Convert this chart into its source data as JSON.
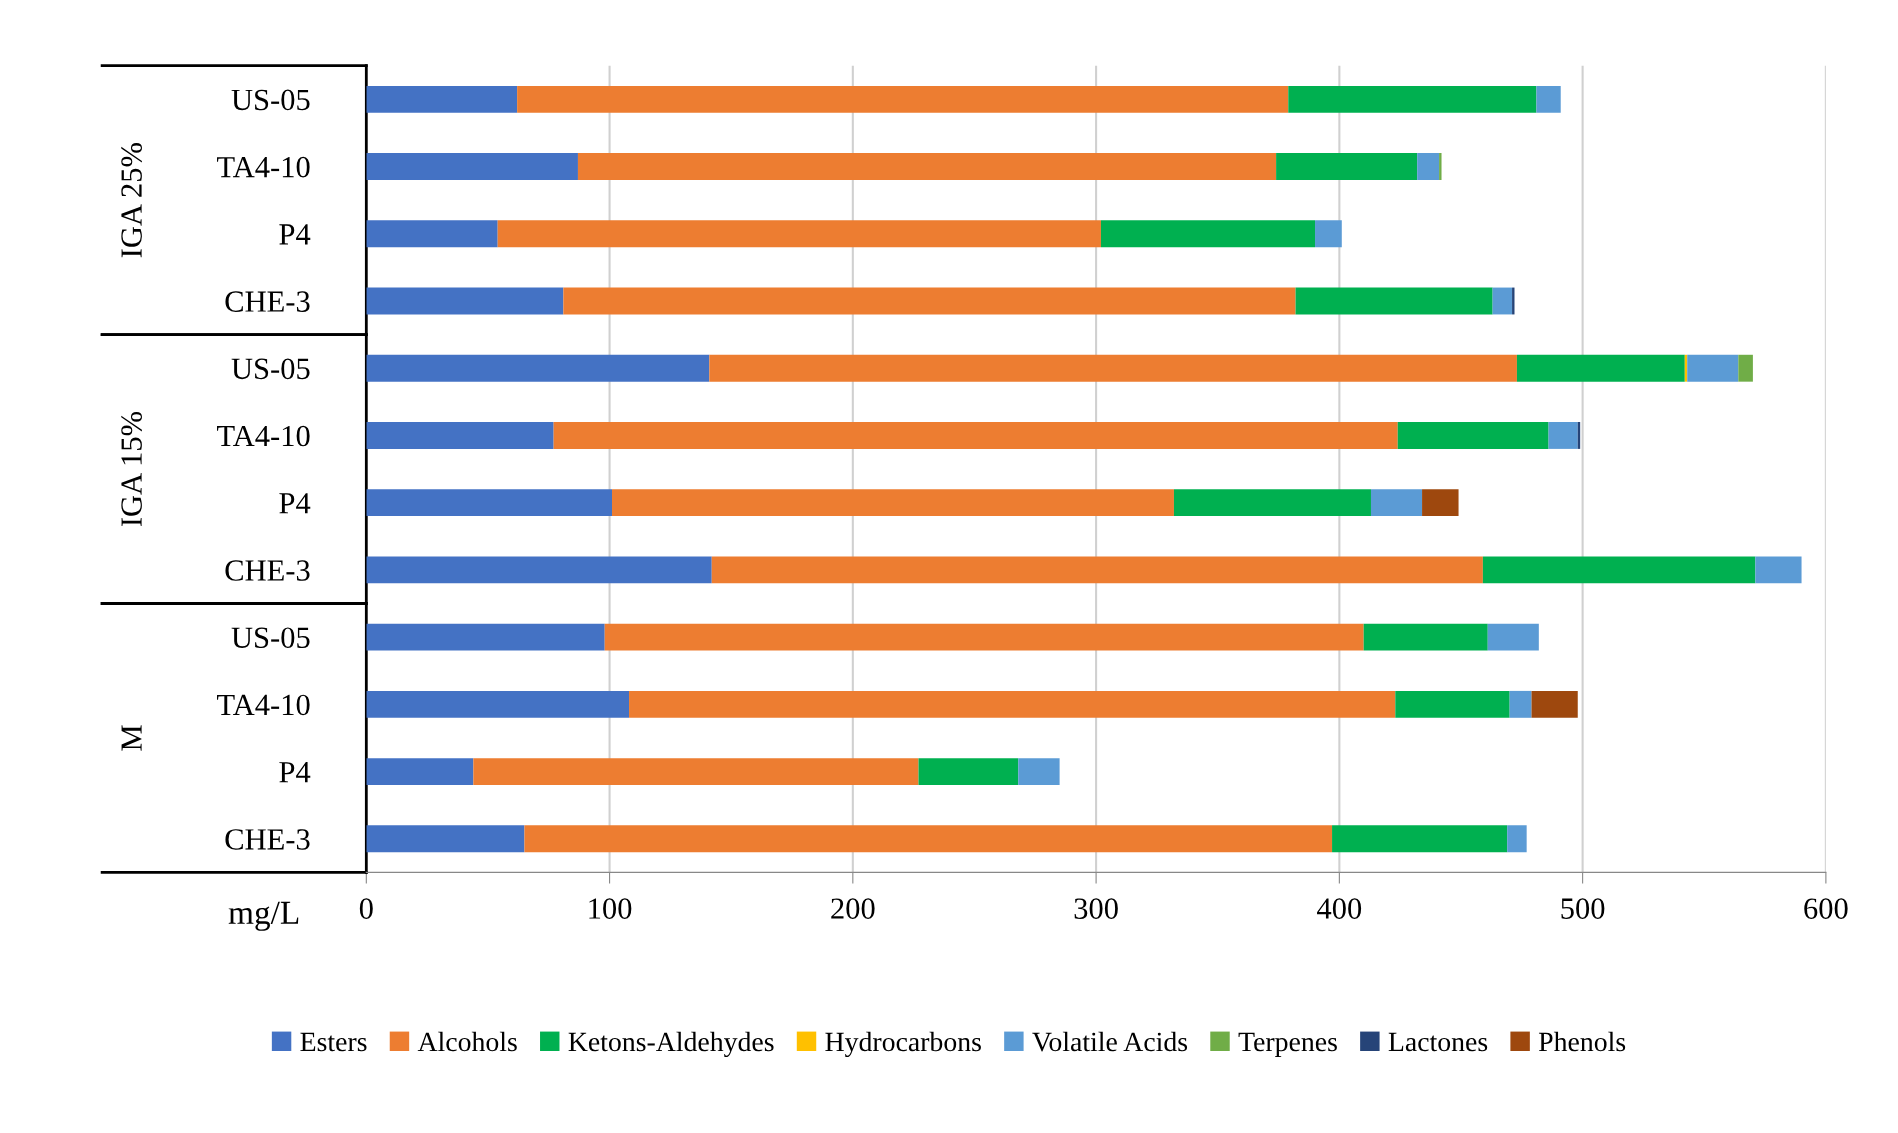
{
  "chart_data": {
    "type": "bar",
    "orientation": "horizontal",
    "stacked": true,
    "xlabel": "mg/L",
    "categories": [
      "US-05",
      "TA4-10",
      "P4",
      "CHE-3",
      "US-05",
      "TA4-10",
      "P4",
      "CHE-3",
      "US-05",
      "TA4-10",
      "P4",
      "CHE-3"
    ],
    "annotations": [
      "IGA 25%",
      "IGA 15%",
      "M"
    ],
    "series": [
      {
        "name": "Esters",
        "color": "#4472c4",
        "values": [
          62,
          87,
          54,
          81,
          141,
          77,
          101,
          142,
          98,
          108,
          44,
          65
        ]
      },
      {
        "name": "Alcohols",
        "color": "#ed7d31",
        "values": [
          317,
          287,
          248,
          301,
          332,
          347,
          231,
          317,
          312,
          315,
          183,
          332
        ]
      },
      {
        "name": "Ketons-Aldehydes",
        "color": "#00b050",
        "values": [
          102,
          58,
          88,
          81,
          69,
          62,
          81,
          112,
          51,
          47,
          41,
          72
        ]
      },
      {
        "name": "Hydrocarbons",
        "color": "#ffc000",
        "values": [
          null,
          null,
          null,
          null,
          1,
          null,
          null,
          null,
          null,
          null,
          null,
          null
        ]
      },
      {
        "name": "Volatile Acids",
        "color": "#5b9bd5",
        "values": [
          10,
          9,
          11,
          8,
          21,
          12,
          21,
          19,
          21,
          9,
          17,
          8
        ]
      },
      {
        "name": "Terpenes",
        "color": "#70ad47",
        "values": [
          null,
          1,
          null,
          null,
          6,
          null,
          null,
          null,
          null,
          null,
          null,
          null
        ]
      },
      {
        "name": "Lactones",
        "color": "#264478",
        "values": [
          null,
          null,
          null,
          1,
          null,
          1,
          null,
          null,
          null,
          null,
          null,
          null
        ]
      },
      {
        "name": "Phenols",
        "color": "#9e480e",
        "values": [
          null,
          null,
          null,
          null,
          null,
          null,
          15,
          null,
          null,
          19,
          null,
          null
        ]
      }
    ],
    "xlim": [
      0,
      600
    ],
    "xticks": [
      0,
      100,
      200,
      300,
      400,
      500,
      600
    ],
    "grid": "x",
    "legend": "bottom"
  }
}
